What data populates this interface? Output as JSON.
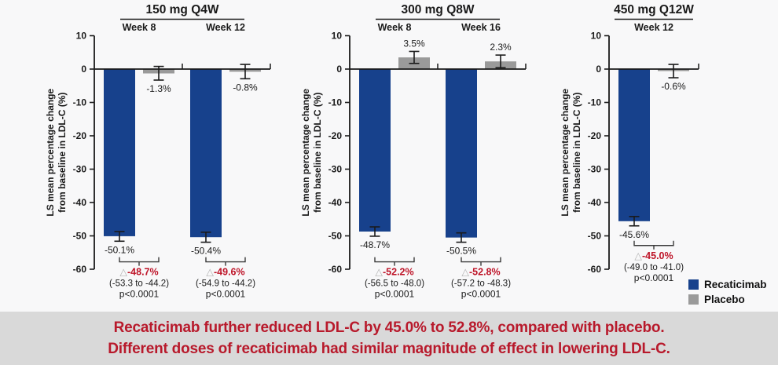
{
  "banner": {
    "line1": "Recaticimab further reduced LDL-C by 45.0% to 52.8%, compared with placebo.",
    "line2": "Different doses of recaticimab had similar magnitude of effect in lowering LDL-C.",
    "text_color": "#b8192b",
    "background": "#d9d9d9"
  },
  "legend": {
    "items": [
      {
        "label": "Recaticimab",
        "color": "#17418c"
      },
      {
        "label": "Placebo",
        "color": "#9a9a9a"
      }
    ]
  },
  "chart_data": {
    "type": "bar",
    "ylabel_line1": "LS mean percentage change",
    "ylabel_line2": "from baseline in LDL-C (%)",
    "ylim": [
      -60,
      10
    ],
    "yticks": [
      10,
      0,
      -10,
      -20,
      -30,
      -40,
      -50,
      -60
    ],
    "grid": false,
    "legend_position": "bottom-right",
    "delta_symbol": "△",
    "delta_color": "#be1428",
    "colors": {
      "recaticimab": "#17418c",
      "placebo": "#9a9a9a"
    },
    "panels": [
      {
        "title": "150 mg Q4W",
        "groups": [
          {
            "week": "Week 8",
            "bars": [
              {
                "series": "recaticimab",
                "value": -50.1,
                "label": "-50.1%",
                "err": [
                  -51.6,
                  -48.7
                ]
              },
              {
                "series": "placebo",
                "value": -1.3,
                "label": "-1.3%",
                "err": [
                  -3.3,
                  0.8
                ]
              }
            ],
            "difference": {
              "delta": "-48.7%",
              "ci": "(-53.3 to -44.2)",
              "p": "p<0.0001"
            }
          },
          {
            "week": "Week 12",
            "bars": [
              {
                "series": "recaticimab",
                "value": -50.4,
                "label": "-50.4%",
                "err": [
                  -51.9,
                  -48.9
                ]
              },
              {
                "series": "placebo",
                "value": -0.8,
                "label": "-0.8%",
                "err": [
                  -2.9,
                  1.4
                ]
              }
            ],
            "difference": {
              "delta": "-49.6%",
              "ci": "(-54.9 to -44.2)",
              "p": "p<0.0001"
            }
          }
        ]
      },
      {
        "title": "300 mg Q8W",
        "groups": [
          {
            "week": "Week 8",
            "bars": [
              {
                "series": "recaticimab",
                "value": -48.7,
                "label": "-48.7%",
                "err": [
                  -50.1,
                  -47.3
                ]
              },
              {
                "series": "placebo",
                "value": 3.5,
                "label": "3.5%",
                "err": [
                  1.7,
                  5.3
                ]
              }
            ],
            "difference": {
              "delta": "-52.2%",
              "ci": "(-56.5 to -48.0)",
              "p": "p<0.0001"
            }
          },
          {
            "week": "Week 16",
            "bars": [
              {
                "series": "recaticimab",
                "value": -50.5,
                "label": "-50.5%",
                "err": [
                  -51.9,
                  -49.1
                ]
              },
              {
                "series": "placebo",
                "value": 2.3,
                "label": "2.3%",
                "err": [
                  0.4,
                  4.2
                ]
              }
            ],
            "difference": {
              "delta": "-52.8%",
              "ci": "(-57.2 to -48.3)",
              "p": "p<0.0001"
            }
          }
        ]
      },
      {
        "title": "450 mg Q12W",
        "groups": [
          {
            "week": "Week 12",
            "bars": [
              {
                "series": "recaticimab",
                "value": -45.6,
                "label": "-45.6%",
                "err": [
                  -47.0,
                  -44.2
                ]
              },
              {
                "series": "placebo",
                "value": -0.6,
                "label": "-0.6%",
                "err": [
                  -2.6,
                  1.4
                ]
              }
            ],
            "difference": {
              "delta": "-45.0%",
              "ci": "(-49.0 to -41.0)",
              "p": "p<0.0001"
            }
          }
        ]
      }
    ]
  }
}
